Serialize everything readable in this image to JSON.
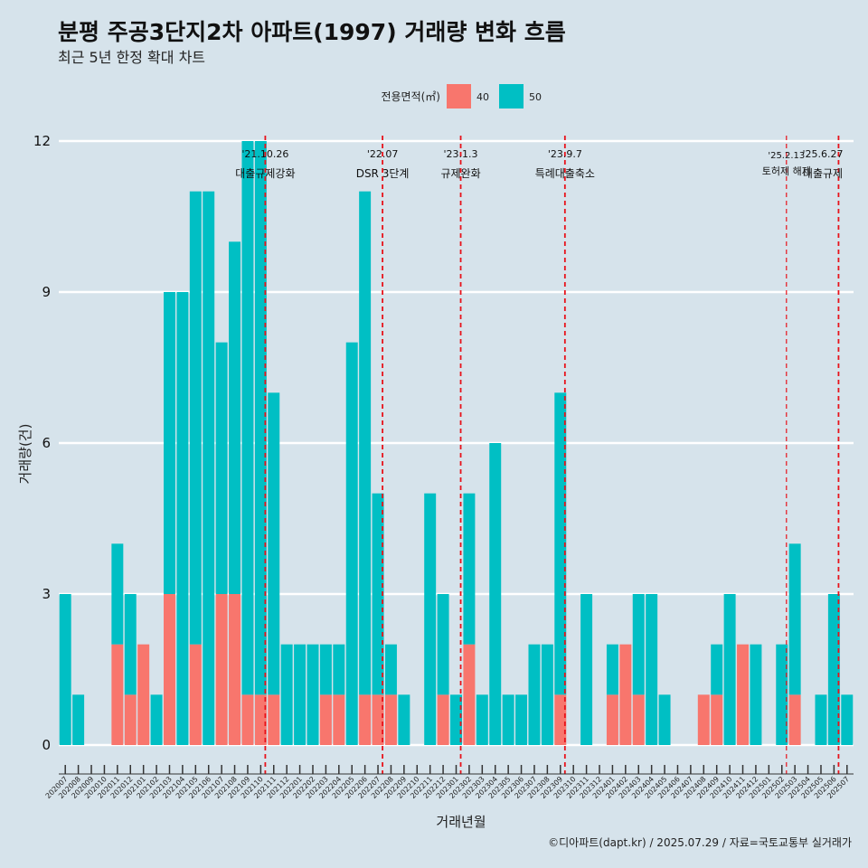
{
  "chart_data": {
    "type": "bar",
    "title": "분평 주공3단지2차 아파트(1997) 거래량 변화 흐름",
    "subtitle": "최근 5년 한정 확대 차트",
    "xlabel": "거래년월",
    "ylabel": "거래량(건)",
    "ylim": [
      0,
      12
    ],
    "yticks": [
      0,
      3,
      6,
      9,
      12
    ],
    "grid": "horizontal",
    "legend": {
      "title": "전용면적(㎡)",
      "position": "top",
      "entries": [
        {
          "name": "40",
          "color": "#f8766d"
        },
        {
          "name": "50",
          "color": "#00bfc4"
        }
      ]
    },
    "categories": [
      "202007",
      "202008",
      "202009",
      "202010",
      "202011",
      "202012",
      "202101",
      "202102",
      "202103",
      "202104",
      "202105",
      "202106",
      "202107",
      "202108",
      "202109",
      "202110",
      "202111",
      "202112",
      "202201",
      "202202",
      "202203",
      "202204",
      "202205",
      "202206",
      "202207",
      "202208",
      "202209",
      "202210",
      "202211",
      "202212",
      "202301",
      "202302",
      "202303",
      "202304",
      "202305",
      "202306",
      "202307",
      "202308",
      "202309",
      "202310",
      "202311",
      "202312",
      "202401",
      "202402",
      "202403",
      "202404",
      "202405",
      "202406",
      "202407",
      "202408",
      "202409",
      "202410",
      "202411",
      "202412",
      "202501",
      "202502",
      "202503",
      "202504",
      "202505",
      "202506",
      "202507"
    ],
    "series": [
      {
        "name": "40",
        "color": "#f8766d",
        "values": [
          0,
          0,
          0,
          0,
          2,
          1,
          2,
          0,
          3,
          0,
          2,
          0,
          3,
          3,
          1,
          1,
          1,
          0,
          0,
          0,
          1,
          1,
          0,
          1,
          1,
          1,
          0,
          0,
          0,
          1,
          0,
          2,
          0,
          0,
          0,
          0,
          0,
          0,
          1,
          0,
          0,
          0,
          1,
          2,
          1,
          0,
          0,
          0,
          0,
          1,
          1,
          0,
          2,
          0,
          0,
          0,
          1,
          0,
          0,
          0,
          0
        ]
      },
      {
        "name": "50",
        "color": "#00bfc4",
        "values": [
          3,
          1,
          0,
          0,
          2,
          2,
          0,
          1,
          6,
          9,
          9,
          11,
          5,
          7,
          11,
          11,
          6,
          2,
          2,
          2,
          1,
          1,
          8,
          10,
          4,
          1,
          1,
          0,
          5,
          2,
          1,
          3,
          1,
          6,
          1,
          1,
          2,
          2,
          6,
          0,
          3,
          0,
          1,
          0,
          2,
          3,
          1,
          0,
          0,
          0,
          1,
          3,
          0,
          2,
          0,
          2,
          3,
          0,
          1,
          3,
          1
        ]
      }
    ],
    "annotations": [
      {
        "date": "'21.10.26",
        "label": "대출규제강화",
        "after": "202110",
        "style": "solid",
        "size": "normal"
      },
      {
        "date": "'22.07",
        "label": "DSR 3단계",
        "after": "202207",
        "style": "solid",
        "size": "normal"
      },
      {
        "date": "'23.1.3",
        "label": "규제완화",
        "after": "202301",
        "style": "solid",
        "size": "normal"
      },
      {
        "date": "'23.9.7",
        "label": "특례대출축소",
        "after": "202309",
        "style": "solid",
        "size": "normal"
      },
      {
        "date": "'25.2.13",
        "label": "토허제 해제",
        "after": "202502",
        "style": "thin",
        "size": "small"
      },
      {
        "date": "'25.6.27",
        "label": "대출규제",
        "after": "202506",
        "style": "solid",
        "size": "normal"
      }
    ],
    "caption": "©디아파트(dapt.kr) / 2025.07.29 / 자료=국토교통부 실거래가"
  }
}
